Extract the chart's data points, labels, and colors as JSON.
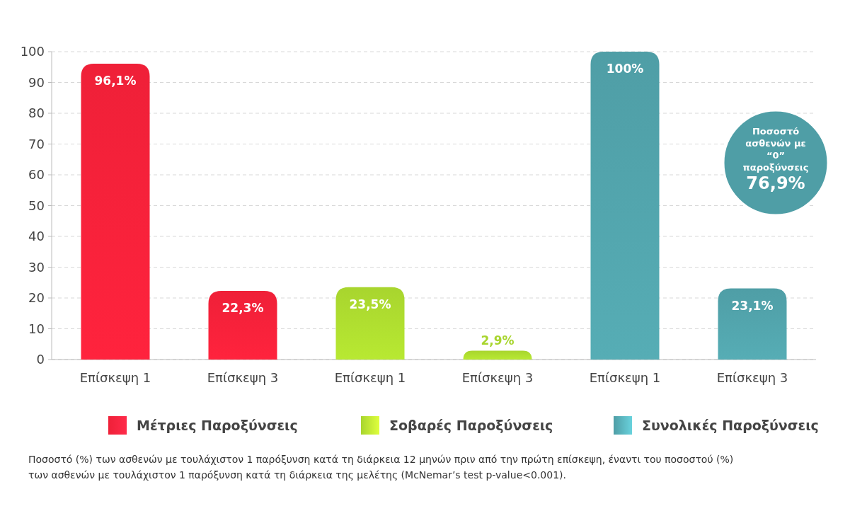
{
  "chart_data": {
    "type": "bar",
    "categories": [
      "Επίσκεψη 1",
      "Επίσκεψη 3",
      "Επίσκεψη 1",
      "Επίσκεψη 3",
      "Επίσκεψη 1",
      "Επίσκεψη 3"
    ],
    "series": [
      {
        "name": "Μέτριες Παροξύνσεις",
        "color": "#ef2038",
        "values": [
          96.1,
          22.3,
          null,
          null,
          null,
          null
        ],
        "value_labels": [
          "96,1%",
          "22,3%",
          null,
          null,
          null,
          null
        ]
      },
      {
        "name": "Σοβαρές Παροξύνσεις",
        "color": "#a8d52e",
        "values": [
          null,
          null,
          23.5,
          2.9,
          null,
          null
        ],
        "value_labels": [
          null,
          null,
          "23,5%",
          "2,9%",
          null,
          null
        ]
      },
      {
        "name": "Συνολικές Παροξύνσεις",
        "color": "#4f9ea6",
        "values": [
          null,
          null,
          null,
          null,
          100,
          23.1
        ],
        "value_labels": [
          null,
          null,
          null,
          null,
          "100%",
          "23,1%"
        ]
      }
    ],
    "ylim": [
      0,
      100
    ],
    "yticks": [
      0,
      10,
      20,
      30,
      40,
      50,
      60,
      70,
      80,
      90,
      100
    ],
    "grid": "y",
    "legend": "bottom",
    "annotations": [
      "Ποσοστό ασθενών με “0” παροξύνσεις 76,9%",
      "Ποσοστό (%) των ασθενών με τουλάχιστον 1 παρόξυνση κατά τη διάρκεια 12 μηνών πριν από την πρώτη επίσκεψη, έναντι του ποσοστού (%) των ασθενών με τουλάχιστον 1 παρόξυνση κατά τη διάρκεια της μελέτης (McNemar’s test p-value<0.001)."
    ]
  }
}
